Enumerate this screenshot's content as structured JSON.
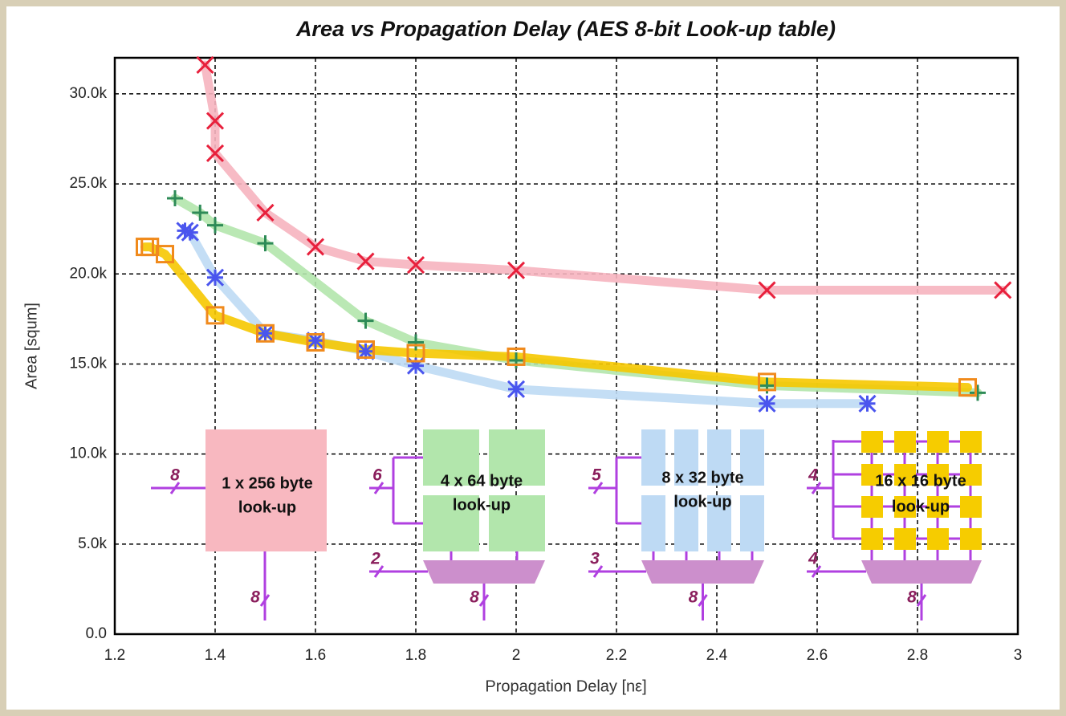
{
  "chart_data": {
    "type": "line",
    "title": "Area vs Propagation Delay (AES 8-bit Look-up table)",
    "x_label": "Propagation Delay [nε]",
    "y_label": "Area [squm]",
    "xlim": [
      1.2,
      3.0
    ],
    "xticks": [
      1.2,
      1.4,
      1.6,
      1.8,
      2,
      2.2,
      2.4,
      2.6,
      2.8,
      3
    ],
    "ylim": [
      0,
      32000
    ],
    "yticks": [
      {
        "value": 0,
        "label": "0.0"
      },
      {
        "value": 5000,
        "label": "5.0k"
      },
      {
        "value": 10000,
        "label": "10.0k"
      },
      {
        "value": 15000,
        "label": "15.0k"
      },
      {
        "value": 20000,
        "label": "20.0k"
      },
      {
        "value": 25000,
        "label": "25.0k"
      },
      {
        "value": 30000,
        "label": "30.0k"
      }
    ],
    "grid": true,
    "series": [
      {
        "marker": "x",
        "color": "#e8203c",
        "line_color": "#f6b4bf",
        "x": [
          1.38,
          1.4,
          1.4,
          1.5,
          1.6,
          1.7,
          1.8,
          2.0,
          2.5,
          2.97
        ],
        "values": [
          31600,
          28500,
          26700,
          23400,
          21500,
          20700,
          20500,
          20200,
          19100,
          19100
        ]
      },
      {
        "marker": "plus",
        "color": "#2e8b57",
        "line_color": "#b2e6ac",
        "x": [
          1.32,
          1.37,
          1.4,
          1.5,
          1.7,
          1.8,
          2.0,
          2.5,
          2.92
        ],
        "values": [
          24200,
          23400,
          22700,
          21700,
          17400,
          16200,
          15200,
          13800,
          13400
        ]
      },
      {
        "marker": "star",
        "color": "#4a55ee",
        "line_color": "#bedaf4",
        "x": [
          1.34,
          1.35,
          1.4,
          1.5,
          1.6,
          1.7,
          1.8,
          2.0,
          2.5,
          2.7
        ],
        "values": [
          22400,
          22300,
          19800,
          16700,
          16300,
          15700,
          14900,
          13600,
          12800,
          12800
        ]
      },
      {
        "marker": "square",
        "color": "#f08a1c",
        "line_color": "#f6c800",
        "x": [
          1.26,
          1.27,
          1.3,
          1.4,
          1.5,
          1.6,
          1.7,
          1.8,
          2.0,
          2.5,
          2.9
        ],
        "values": [
          21500,
          21500,
          21100,
          17700,
          16700,
          16200,
          15800,
          15600,
          15400,
          14000,
          13700
        ]
      }
    ],
    "insets": [
      {
        "label": [
          "1 x 256 byte",
          "look-up"
        ],
        "address_bits": 8,
        "output_bits": 8
      },
      {
        "label": [
          "4 x  64 byte",
          "look-up"
        ],
        "address_bits": 6,
        "select_bits": 2,
        "output_bits": 8
      },
      {
        "label": [
          "8 x  32 byte",
          "look-up"
        ],
        "address_bits": 5,
        "select_bits": 3,
        "output_bits": 8
      },
      {
        "label": [
          "16 x  16 byte",
          "look-up"
        ],
        "address_bits": 4,
        "select_bits": 4,
        "output_bits": 8
      }
    ]
  }
}
